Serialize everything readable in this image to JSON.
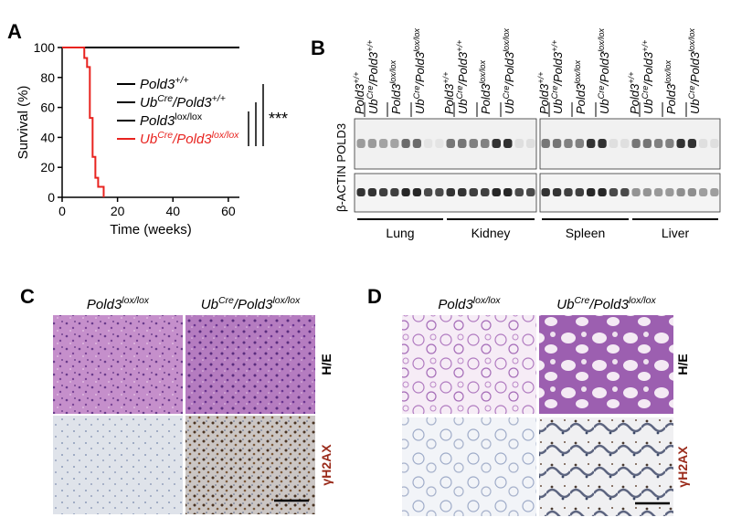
{
  "chart_data": {
    "type": "line",
    "panel_label": "A",
    "xlabel": "Time (weeks)",
    "ylabel": "Survival (%)",
    "xlim": [
      0,
      64
    ],
    "ylim": [
      0,
      100
    ],
    "xticks": [
      0,
      20,
      40,
      60
    ],
    "yticks": [
      0,
      20,
      40,
      60,
      80,
      100
    ],
    "annotation": "***",
    "series": [
      {
        "name": [
          {
            "text": "Pold3"
          },
          {
            "text": "+/+",
            "sup": true
          }
        ],
        "color": "#000000",
        "x": [
          0,
          64
        ],
        "values": [
          100,
          100
        ]
      },
      {
        "name": [
          {
            "text": "Ub"
          },
          {
            "text": "Cre",
            "sup": true
          },
          {
            "text": "/Pold3"
          },
          {
            "text": "+/+",
            "sup": true
          }
        ],
        "color": "#000000",
        "x": [
          0,
          64
        ],
        "values": [
          100,
          100
        ]
      },
      {
        "name": [
          {
            "text": "Pold3"
          },
          {
            "text": "lox/lox",
            "sup": true,
            "italic": false
          }
        ],
        "color": "#000000",
        "x": [
          0,
          64
        ],
        "values": [
          100,
          100
        ]
      },
      {
        "name": [
          {
            "text": "Ub"
          },
          {
            "text": "Cre",
            "sup": true
          },
          {
            "text": "/Pold3"
          },
          {
            "text": "lox/lox",
            "sup": true
          }
        ],
        "color": "#e8231f",
        "x": [
          0,
          8,
          8,
          9,
          9,
          10,
          10,
          11,
          11,
          12,
          12,
          13,
          13,
          15,
          15
        ],
        "values": [
          100,
          100,
          93,
          93,
          87,
          87,
          53,
          53,
          27,
          27,
          13,
          13,
          7,
          7,
          0
        ]
      }
    ]
  },
  "blot": {
    "panel_label": "B",
    "lanes": [
      [
        {
          "text": "Pold3"
        },
        {
          "text": "+/+",
          "sup": true
        }
      ],
      [
        {
          "text": "Ub"
        },
        {
          "text": "Cre",
          "sup": true
        },
        {
          "text": "/Pold3"
        },
        {
          "text": "+/+",
          "sup": true
        }
      ],
      [
        {
          "text": "Pold3"
        },
        {
          "text": "lox/lox",
          "sup": true
        }
      ],
      [
        {
          "text": "Ub"
        },
        {
          "text": "Cre",
          "sup": true
        },
        {
          "text": "/Pold3"
        },
        {
          "text": "lox/lox",
          "sup": true
        }
      ]
    ],
    "row_label": "β-ACTIN POLD3",
    "tissues": [
      "Lung",
      "Kidney",
      "Spleen",
      "Liver"
    ]
  },
  "histology_liver": {
    "panel_label": "C",
    "columns": [
      [
        {
          "text": "Pold3"
        },
        {
          "text": "lox/lox",
          "sup": true
        }
      ],
      [
        {
          "text": "Ub"
        },
        {
          "text": "Cre",
          "sup": true
        },
        {
          "text": "/Pold3"
        },
        {
          "text": "lox/lox",
          "sup": true
        }
      ]
    ],
    "rows": [
      "H/E",
      "γH2AX"
    ]
  },
  "histology_lung": {
    "panel_label": "D",
    "columns": [
      [
        {
          "text": "Pold3"
        },
        {
          "text": "lox/lox",
          "sup": true
        }
      ],
      [
        {
          "text": "Ub"
        },
        {
          "text": "Cre",
          "sup": true
        },
        {
          "text": "/Pold3"
        },
        {
          "text": "lox/lox",
          "sup": true
        }
      ]
    ],
    "rows": [
      "H/E",
      "γH2AX"
    ]
  }
}
